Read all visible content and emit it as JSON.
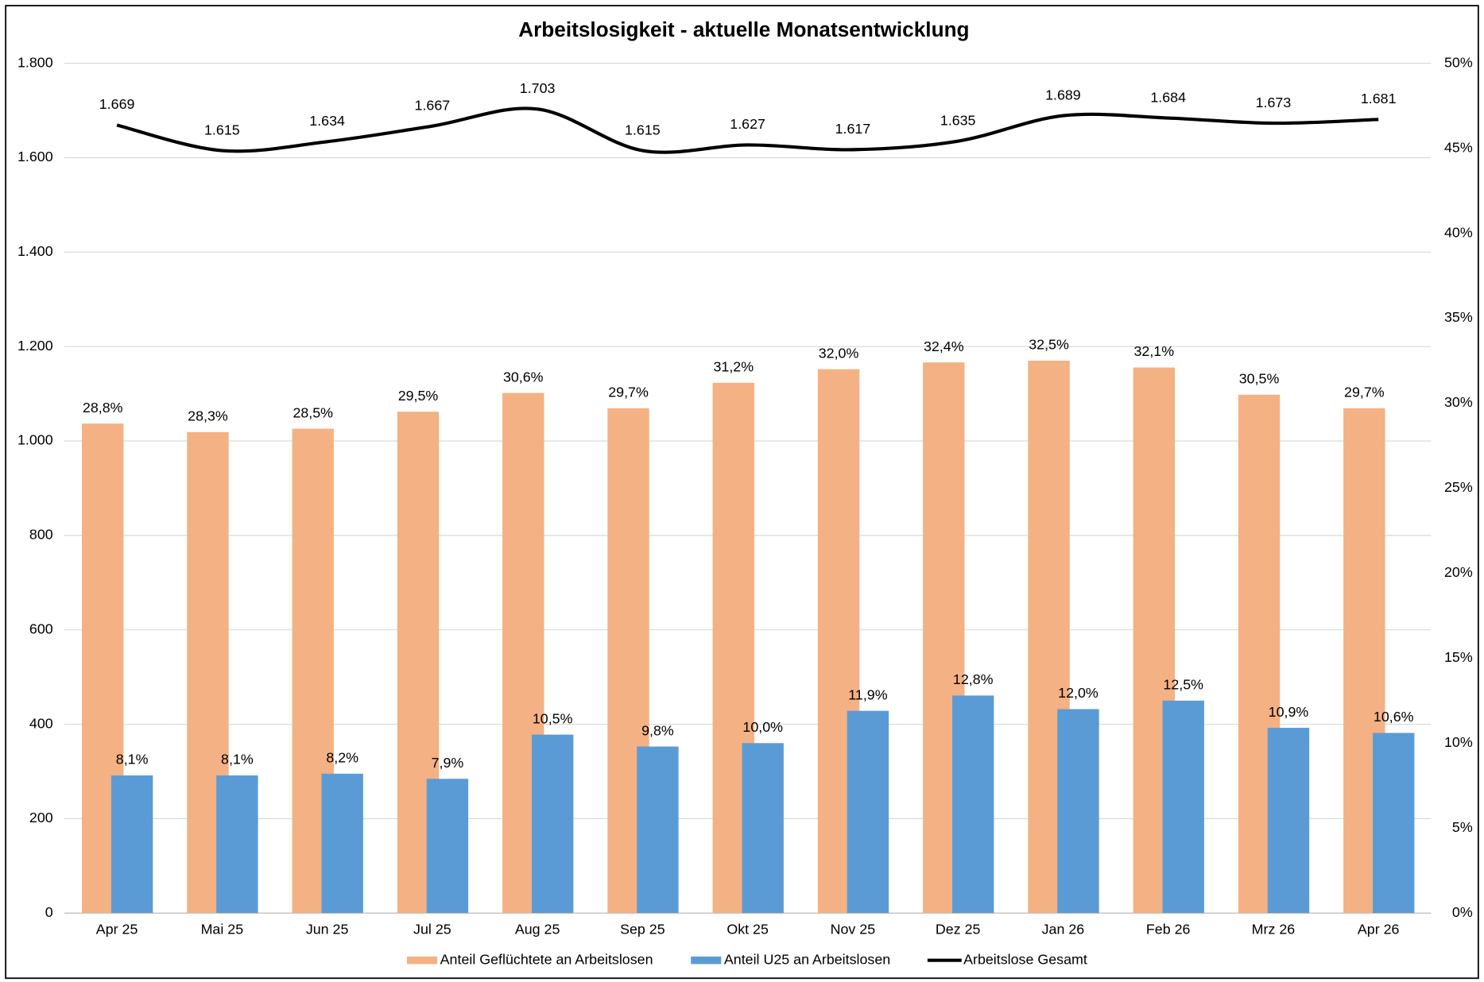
{
  "chart_data": {
    "type": "bar",
    "title": "Arbeitslosigkeit - aktuelle Monatsentwicklung",
    "categories": [
      "Apr 25",
      "Mai 25",
      "Jun 25",
      "Jul 25",
      "Aug 25",
      "Sep 25",
      "Okt 25",
      "Nov 25",
      "Dez 25",
      "Jan 26",
      "Feb 26",
      "Mrz 26",
      "Apr 26"
    ],
    "ylim": [
      0,
      1800
    ],
    "yticks": [
      0,
      200,
      400,
      600,
      800,
      {
        "value": 1000,
        "label": "1.000"
      },
      {
        "value": 1200,
        "label": "1.200"
      },
      {
        "value": 1400,
        "label": "1.400"
      },
      {
        "value": 1600,
        "label": "1.600"
      },
      {
        "value": 1800,
        "label": "1.800"
      }
    ],
    "y2lim": [
      0,
      50
    ],
    "y2ticks": [
      {
        "value": 0,
        "label": "0%"
      },
      {
        "value": 5,
        "label": "5%"
      },
      {
        "value": 10,
        "label": "10%"
      },
      {
        "value": 15,
        "label": "15%"
      },
      {
        "value": 20,
        "label": "20%"
      },
      {
        "value": 25,
        "label": "25%"
      },
      {
        "value": 30,
        "label": "30%"
      },
      {
        "value": 35,
        "label": "35%"
      },
      {
        "value": 40,
        "label": "40%"
      },
      {
        "value": 45,
        "label": "45%"
      },
      {
        "value": 50,
        "label": "50%"
      }
    ],
    "grid": true,
    "legend": "bottom",
    "series": [
      {
        "name": "Anteil Geflüchtete an Arbeitslosen",
        "color": "#F4B183",
        "axis": "y2",
        "type": "bar",
        "values": [
          28.8,
          28.3,
          28.5,
          29.5,
          30.6,
          29.7,
          31.2,
          32.0,
          32.4,
          32.5,
          32.1,
          30.5,
          29.7
        ],
        "value_labels": [
          "28,8%",
          "28,3%",
          "28,5%",
          "29,5%",
          "30,6%",
          "29,7%",
          "31,2%",
          "32,0%",
          "32,4%",
          "32,5%",
          "32,1%",
          "30,5%",
          "29,7%"
        ]
      },
      {
        "name": "Anteil U25 an Arbeitslosen",
        "color": "#5B9BD5",
        "axis": "y2",
        "type": "bar",
        "values": [
          8.1,
          8.1,
          8.2,
          7.9,
          10.5,
          9.8,
          10.0,
          11.9,
          12.8,
          12.0,
          12.5,
          10.9,
          10.6
        ],
        "value_labels": [
          "8,1%",
          "8,1%",
          "8,2%",
          "7,9%",
          "10,5%",
          "9,8%",
          "10,0%",
          "11,9%",
          "12,8%",
          "12,0%",
          "12,5%",
          "10,9%",
          "10,6%"
        ]
      },
      {
        "name": "Arbeitslose Gesamt",
        "color": "#000000",
        "type": "line",
        "values": [
          1669,
          1615,
          1634,
          1667,
          1703,
          1615,
          1627,
          1617,
          1635,
          1689,
          1684,
          1673,
          1681
        ],
        "value_labels": [
          "1.669",
          "1.615",
          "1.634",
          "1.667",
          "1.703",
          "1.615",
          "1.627",
          "1.617",
          "1.635",
          "1.689",
          "1.684",
          "1.673",
          "1.681"
        ]
      }
    ]
  }
}
